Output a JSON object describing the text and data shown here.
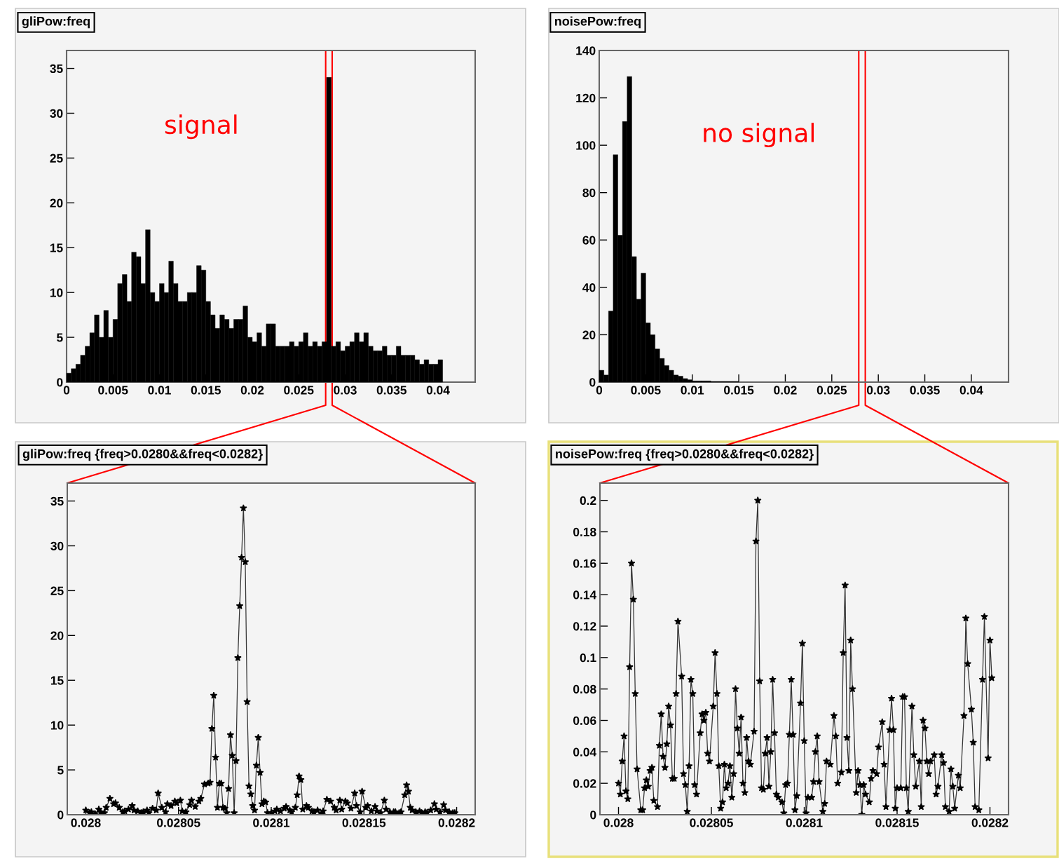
{
  "chart_data": [
    {
      "type": "histogram",
      "title": "gliPow:freq",
      "annotations": [
        "signal"
      ],
      "color": "#000000",
      "bins": [
        0,
        0.0005,
        0.001,
        0.0015,
        0.002,
        0.0025,
        0.003,
        0.0035,
        0.004,
        0.0045,
        0.005,
        0.0055,
        0.006,
        0.0065,
        0.007,
        0.0075,
        0.008,
        0.0085,
        0.009,
        0.0095,
        0.01,
        0.0105,
        0.011,
        0.0115,
        0.012,
        0.0125,
        0.013,
        0.0135,
        0.014,
        0.0145,
        0.015,
        0.0155,
        0.016,
        0.0165,
        0.017,
        0.0175,
        0.018,
        0.0185,
        0.019,
        0.0195,
        0.02,
        0.0205,
        0.021,
        0.0215,
        0.022,
        0.0225,
        0.023,
        0.0235,
        0.024,
        0.0245,
        0.025,
        0.0255,
        0.026,
        0.0265,
        0.027,
        0.0275,
        0.028,
        0.0285,
        0.029,
        0.0295,
        0.03,
        0.0305,
        0.031,
        0.0315,
        0.032,
        0.0325,
        0.033,
        0.0335,
        0.034,
        0.0345,
        0.035,
        0.0355,
        0.036,
        0.0365,
        0.037,
        0.0375,
        0.038,
        0.0385,
        0.039,
        0.0395,
        0.04,
        0.0405
      ],
      "values": [
        1,
        1.5,
        2,
        3,
        4,
        5.5,
        7.5,
        5,
        8,
        5,
        7,
        11,
        12,
        9,
        14.5,
        14,
        11,
        17,
        10,
        9,
        11,
        10,
        13.5,
        11,
        9,
        9,
        10,
        10,
        13,
        12.5,
        9,
        7.5,
        6,
        7.5,
        7,
        6,
        7,
        7,
        8.5,
        5,
        4.5,
        5.5,
        4,
        6.5,
        6.5,
        4,
        4,
        4,
        4.5,
        4,
        4.5,
        5.5,
        4,
        4.5,
        4,
        4.5,
        34,
        4,
        4.5,
        3.5,
        4,
        4.5,
        5.5,
        4.5,
        5.5,
        4,
        3.5,
        3.5,
        4,
        3,
        3,
        4,
        3,
        3,
        3,
        2.5,
        2,
        2.5,
        2,
        2,
        2.5
      ],
      "xlim": [
        0,
        0.044
      ],
      "ylim": [
        0,
        37
      ],
      "xticks": [
        0,
        0.005,
        0.01,
        0.015,
        0.02,
        0.025,
        0.03,
        0.035,
        0.04
      ],
      "yticks": [
        0,
        5,
        10,
        15,
        20,
        25,
        30,
        35
      ],
      "ref_lines": [
        {
          "axis": "x",
          "value": 0.0279,
          "color": "#ff0000"
        },
        {
          "axis": "x",
          "value": 0.0286,
          "color": "#ff0000"
        }
      ]
    },
    {
      "type": "histogram",
      "title": "noisePow:freq",
      "annotations": [
        "no signal"
      ],
      "color": "#000000",
      "bins": [
        0,
        0.0005,
        0.001,
        0.0015,
        0.002,
        0.0025,
        0.003,
        0.0035,
        0.004,
        0.0045,
        0.005,
        0.0055,
        0.006,
        0.0065,
        0.007,
        0.0075,
        0.008,
        0.0085,
        0.009,
        0.0095,
        0.01,
        0.0105,
        0.011,
        0.0115,
        0.012,
        0.0125,
        0.013,
        0.0135,
        0.014,
        0.0145,
        0.015
      ],
      "values": [
        5,
        3,
        30,
        96,
        62,
        110,
        129,
        53,
        35,
        46,
        25,
        20,
        14,
        10,
        7,
        5,
        3,
        2.5,
        1.5,
        1,
        0.5,
        0.5,
        0.5,
        0.5,
        0.3,
        0.3,
        0.3,
        0.3,
        0.3,
        0.3
      ],
      "xlim": [
        0,
        0.044
      ],
      "ylim": [
        0,
        140
      ],
      "xticks": [
        0,
        0.005,
        0.01,
        0.015,
        0.02,
        0.025,
        0.03,
        0.035,
        0.04
      ],
      "yticks": [
        0,
        20,
        40,
        60,
        80,
        100,
        120,
        140
      ],
      "ref_lines": [
        {
          "axis": "x",
          "value": 0.0279,
          "color": "#ff0000"
        },
        {
          "axis": "x",
          "value": 0.0286,
          "color": "#ff0000"
        }
      ]
    },
    {
      "type": "line",
      "title": "gliPow:freq {freq>0.0280&&freq<0.0282}",
      "color": "#333333",
      "marker": "star",
      "line_style": "solid",
      "x": [
        0.028,
        0.028002,
        0.028003,
        0.028005,
        0.028007,
        0.028008,
        0.02801,
        0.028011,
        0.028013,
        0.028015,
        0.028016,
        0.028018,
        0.02802,
        0.028021,
        0.028023,
        0.028025,
        0.028026,
        0.028028,
        0.02803,
        0.028031,
        0.028033,
        0.028034,
        0.028036,
        0.028038,
        0.028039,
        0.028041,
        0.028043,
        0.028044,
        0.028046,
        0.028048,
        0.028049,
        0.028051,
        0.028052,
        0.028054,
        0.028056,
        0.028057,
        0.028059,
        0.028061,
        0.028062,
        0.028064,
        0.028066,
        0.028067,
        0.028068,
        0.028069,
        0.02807,
        0.028071,
        0.028072,
        0.028073,
        0.028074,
        0.028075,
        0.028076,
        0.028077,
        0.028078,
        0.028079,
        0.02808,
        0.028081,
        0.028082,
        0.028083,
        0.028084,
        0.028085,
        0.028086,
        0.028087,
        0.028088,
        0.028089,
        0.02809,
        0.028091,
        0.028092,
        0.028093,
        0.028094,
        0.028095,
        0.028096,
        0.028097,
        0.028098,
        0.0281,
        0.028102,
        0.028103,
        0.028105,
        0.028107,
        0.028108,
        0.02811,
        0.028111,
        0.028113,
        0.028114,
        0.028115,
        0.028116,
        0.028117,
        0.028119,
        0.02812,
        0.028122,
        0.028123,
        0.028125,
        0.028127,
        0.028128,
        0.02813,
        0.028132,
        0.028134,
        0.028135,
        0.028137,
        0.028138,
        0.02814,
        0.028141,
        0.028143,
        0.028145,
        0.028146,
        0.028148,
        0.028149,
        0.028151,
        0.028152,
        0.028154,
        0.028156,
        0.028157,
        0.028159,
        0.028161,
        0.028162,
        0.028164,
        0.028166,
        0.028167,
        0.028169,
        0.02817,
        0.028172,
        0.028173,
        0.028174,
        0.028175,
        0.028176,
        0.028178,
        0.02818,
        0.028181,
        0.028183,
        0.028184,
        0.028186,
        0.028188,
        0.028189,
        0.028191,
        0.028193,
        0.028194,
        0.028196,
        0.028198,
        0.028199
      ],
      "values": [
        0.5,
        0.2,
        0.3,
        0.1,
        0.6,
        0.3,
        0.2,
        0.8,
        1.8,
        1.2,
        1.3,
        0.8,
        0.3,
        0.4,
        0.6,
        1.0,
        0.5,
        0.4,
        0.2,
        0.3,
        0.5,
        0.2,
        0.7,
        0.5,
        2.4,
        0.8,
        0.3,
        1.2,
        1.0,
        1.5,
        1.3,
        1.6,
        0.4,
        0.3,
        1.1,
        1.6,
        0.9,
        1.5,
        1.8,
        3.4,
        3.5,
        3.6,
        9.6,
        13.3,
        6.4,
        0.8,
        3.5,
        3.5,
        0.8,
        0.7,
        0.2,
        2.9,
        8.9,
        6.6,
        0.2,
        6.0,
        17.5,
        23.3,
        28.7,
        34.2,
        28.2,
        12.6,
        3.2,
        2.3,
        1.0,
        0.5,
        5.5,
        8.6,
        4.7,
        1.2,
        1.5,
        1.4,
        0.2,
        0.2,
        0.4,
        0.6,
        0.4,
        0.7,
        0.9,
        0.5,
        0.3,
        0.8,
        2.2,
        4.3,
        3.9,
        0.6,
        1.0,
        0.8,
        0.4,
        0.3,
        0.5,
        0.1,
        0.4,
        1.7,
        1.5,
        0.8,
        0.5,
        1.6,
        0.6,
        1.5,
        1.3,
        0.7,
        2.4,
        1.0,
        0.3,
        2.6,
        0.8,
        1.0,
        0.4,
        0.9,
        0.4,
        0.2,
        1.6,
        0.6,
        0.3,
        0.3,
        0.3,
        0.2,
        0.3,
        2.2,
        3.3,
        2.6,
        0.8,
        0.5,
        0.3,
        0.4,
        0.2,
        0.3,
        0.2,
        0.5,
        1.2,
        0.6,
        0.3,
        1.1,
        0.5,
        0.3,
        0.2,
        0.2
      ],
      "xlim": [
        0.02799,
        0.02821
      ],
      "ylim": [
        0,
        37
      ],
      "xticks": [
        0.028,
        0.02805,
        0.0281,
        0.02815,
        0.0282
      ],
      "yticks": [
        0,
        5,
        10,
        15,
        20,
        25,
        30,
        35
      ]
    },
    {
      "type": "line",
      "title": "noisePow:freq {freq>0.0280&&freq<0.0282}",
      "color": "#333333",
      "marker": "star",
      "line_style": "solid",
      "x": [
        0.028,
        0.028001,
        0.028002,
        0.028003,
        0.028004,
        0.028005,
        0.028006,
        0.028007,
        0.028008,
        0.028009,
        0.02801,
        0.028012,
        0.028013,
        0.028014,
        0.028015,
        0.028016,
        0.028017,
        0.028018,
        0.028019,
        0.028021,
        0.028022,
        0.028023,
        0.028024,
        0.028025,
        0.028026,
        0.028027,
        0.028028,
        0.028029,
        0.02803,
        0.028031,
        0.028032,
        0.028034,
        0.028035,
        0.028036,
        0.028037,
        0.028038,
        0.028039,
        0.02804,
        0.028041,
        0.028042,
        0.028044,
        0.028045,
        0.028046,
        0.028047,
        0.028048,
        0.028049,
        0.028051,
        0.028052,
        0.028053,
        0.028054,
        0.028055,
        0.028056,
        0.028057,
        0.028058,
        0.028059,
        0.02806,
        0.028061,
        0.028062,
        0.028063,
        0.028064,
        0.028065,
        0.028066,
        0.028067,
        0.028068,
        0.028069,
        0.02807,
        0.028071,
        0.028073,
        0.028074,
        0.028075,
        0.028076,
        0.028077,
        0.028078,
        0.028079,
        0.02808,
        0.028081,
        0.028082,
        0.028083,
        0.028084,
        0.028085,
        0.028086,
        0.028088,
        0.028089,
        0.02809,
        0.028091,
        0.028092,
        0.028093,
        0.028094,
        0.028095,
        0.028096,
        0.028098,
        0.028099,
        0.0281,
        0.028101,
        0.028102,
        0.028104,
        0.028105,
        0.028106,
        0.028107,
        0.028108,
        0.02811,
        0.028111,
        0.028112,
        0.028114,
        0.028116,
        0.028117,
        0.028118,
        0.02812,
        0.028121,
        0.028122,
        0.028123,
        0.028124,
        0.028125,
        0.028126,
        0.028128,
        0.028129,
        0.02813,
        0.028131,
        0.028132,
        0.028133,
        0.028135,
        0.028136,
        0.028137,
        0.028139,
        0.02814,
        0.028142,
        0.028143,
        0.028144,
        0.028146,
        0.028147,
        0.028148,
        0.028149,
        0.02815,
        0.028152,
        0.028153,
        0.028154,
        0.028155,
        0.028156,
        0.028158,
        0.028159,
        0.02816,
        0.028162,
        0.028163,
        0.028164,
        0.028165,
        0.028166,
        0.028167,
        0.028168,
        0.02817,
        0.028171,
        0.028172,
        0.028174,
        0.028175,
        0.028176,
        0.028178,
        0.028179,
        0.02818,
        0.028181,
        0.028183,
        0.028184,
        0.028186,
        0.028187,
        0.028188,
        0.02819,
        0.028191,
        0.028192,
        0.028194,
        0.028196,
        0.028197,
        0.028199,
        0.0282,
        0.028201
      ],
      "values": [
        0.02,
        0.013,
        0.034,
        0.05,
        0.015,
        0.01,
        0.094,
        0.16,
        0.137,
        0.077,
        0.029,
        0.003,
        0.003,
        0.017,
        0.022,
        0.018,
        0.028,
        0.03,
        0.009,
        0.005,
        0.044,
        0.064,
        0.037,
        0.03,
        0.045,
        0.069,
        0.057,
        0.023,
        0.023,
        0.077,
        0.123,
        0.088,
        0.026,
        0.019,
        0.002,
        0.031,
        0.086,
        0.077,
        0.019,
        0.013,
        0.052,
        0.064,
        0.06,
        0.065,
        0.039,
        0.034,
        0.069,
        0.103,
        0.077,
        0.031,
        0.004,
        0.008,
        0.032,
        0.017,
        0.02,
        0.031,
        0.011,
        0.026,
        0.08,
        0.055,
        0.039,
        0.062,
        0.02,
        0.014,
        0.049,
        0.034,
        0.032,
        0.053,
        0.174,
        0.2,
        0.085,
        0.017,
        0.016,
        0.039,
        0.049,
        0.018,
        0.04,
        0.086,
        0.052,
        0.013,
        0.011,
        0.008,
        0.001,
        0.019,
        0.02,
        0.051,
        0.086,
        0.051,
        0.003,
        0.012,
        0.071,
        0.109,
        0.047,
        0.001,
        0.011,
        0.011,
        0.021,
        0.04,
        0.05,
        0.021,
        0.002,
        0.007,
        0.034,
        0.032,
        0.063,
        0.05,
        0.02,
        0.027,
        0.103,
        0.146,
        0.049,
        0.028,
        0.111,
        0.08,
        0.014,
        0.028,
        0.019,
        0.0,
        0.019,
        0.013,
        0.008,
        0.023,
        0.028,
        0.026,
        0.043,
        0.059,
        0.032,
        0.005,
        0.054,
        0.074,
        0.054,
        0.004,
        0.017,
        0.017,
        0.075,
        0.075,
        0.017,
        0.002,
        0.069,
        0.038,
        0.018,
        0.034,
        0.005,
        0.06,
        0.055,
        0.034,
        0.026,
        0.034,
        0.038,
        0.013,
        0.018,
        0.038,
        0.033,
        0.005,
        0.002,
        0.029,
        0.018,
        0.004,
        0.025,
        0.017,
        0.063,
        0.125,
        0.096,
        0.067,
        0.046,
        0.005,
        0.003,
        0.086,
        0.126,
        0.036,
        0.111,
        0.087
      ],
      "xlim": [
        0.02799,
        0.02821
      ],
      "ylim": [
        0,
        0.211
      ],
      "xticks": [
        0.028,
        0.02805,
        0.0281,
        0.02815,
        0.0282
      ],
      "yticks": [
        0,
        0.02,
        0.04,
        0.06,
        0.08,
        0.1,
        0.12,
        0.14,
        0.16,
        0.18,
        0.2
      ]
    }
  ]
}
